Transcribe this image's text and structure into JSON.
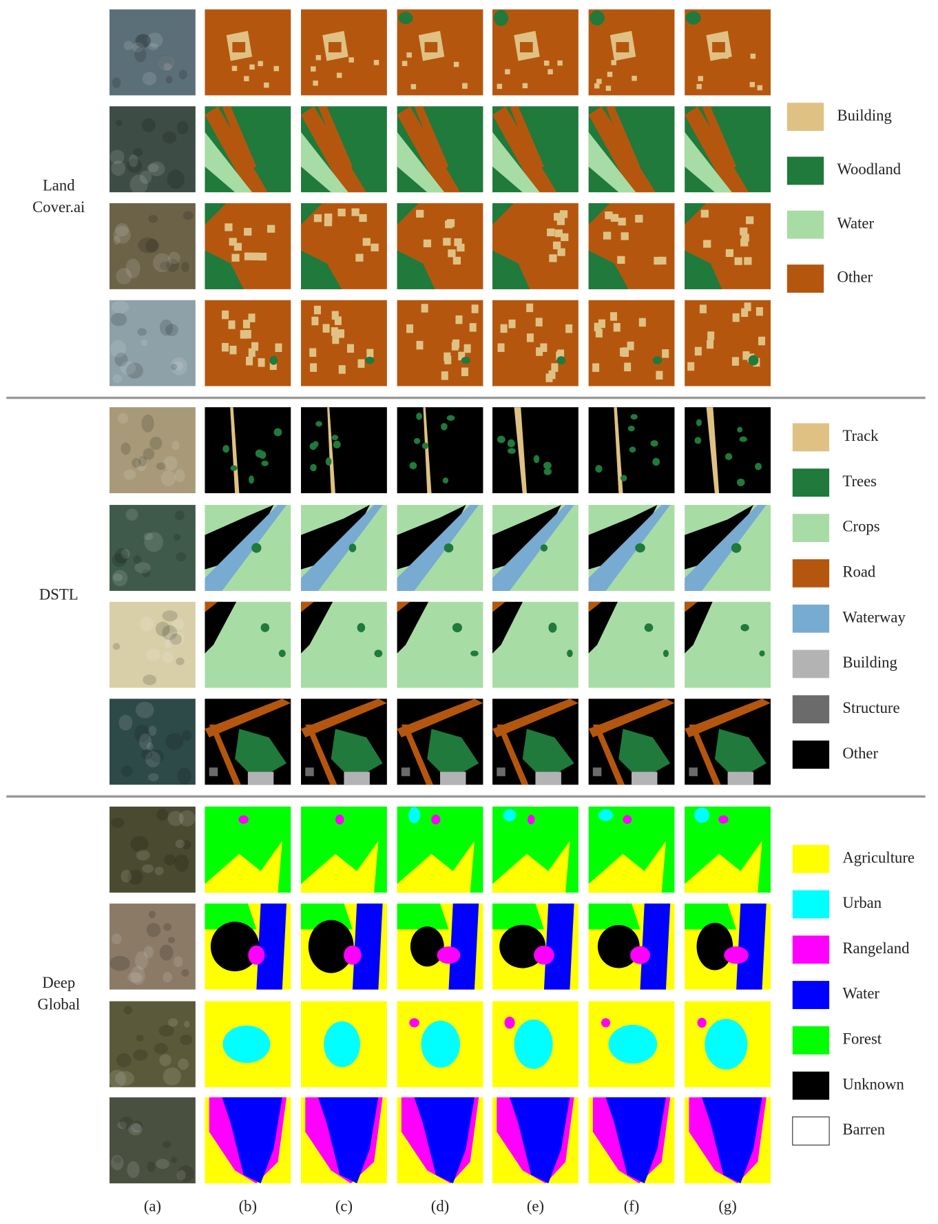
{
  "sections": [
    {
      "label": [
        "Land",
        "Cover.ai"
      ],
      "legend": [
        {
          "name": "Building",
          "color": "#dfc283"
        },
        {
          "name": "Woodland",
          "color": "#1f7a3c"
        },
        {
          "name": "Water",
          "color": "#a8dca5"
        },
        {
          "name": "Other",
          "color": "#b5560f"
        }
      ]
    },
    {
      "label": [
        "DSTL"
      ],
      "legend": [
        {
          "name": "Track",
          "color": "#dfc283"
        },
        {
          "name": "Trees",
          "color": "#1f7a3c"
        },
        {
          "name": "Crops",
          "color": "#a8dca5"
        },
        {
          "name": "Road",
          "color": "#b5560f"
        },
        {
          "name": "Waterway",
          "color": "#78abd1"
        },
        {
          "name": "Building",
          "color": "#b3b3b3"
        },
        {
          "name": "Structure",
          "color": "#6b6b6b"
        },
        {
          "name": "Other",
          "color": "#000000"
        }
      ]
    },
    {
      "label": [
        "Deep",
        "Global"
      ],
      "legend": [
        {
          "name": "Agriculture",
          "color": "#ffff00"
        },
        {
          "name": "Urban",
          "color": "#00ffff"
        },
        {
          "name": "Rangeland",
          "color": "#ff00ff"
        },
        {
          "name": "Water",
          "color": "#0000ff"
        },
        {
          "name": "Forest",
          "color": "#00ff00"
        },
        {
          "name": "Unknown",
          "color": "#000000"
        },
        {
          "name": "Barren",
          "color": "#ffffff"
        }
      ]
    }
  ],
  "columns": [
    "(a)",
    "(b)",
    "(c)",
    "(d)",
    "(e)",
    "(f)",
    "(g)"
  ]
}
